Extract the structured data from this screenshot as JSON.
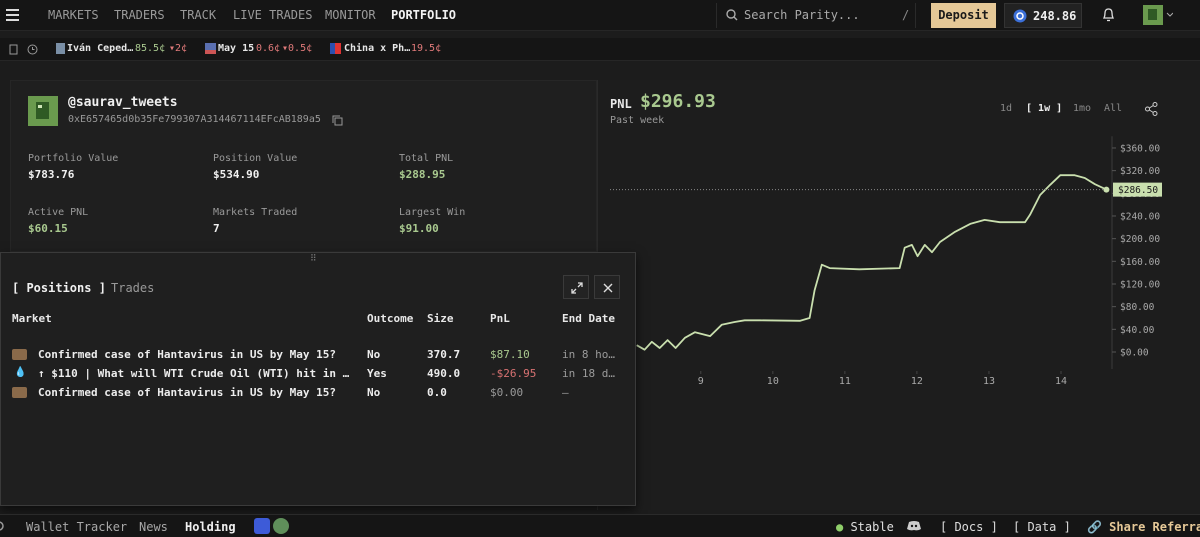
{
  "nav": {
    "items": [
      "MARKETS",
      "TRADERS",
      "TRACK",
      "LIVE TRADES",
      "MONITOR",
      "PORTFOLIO"
    ],
    "active_index": 5
  },
  "search": {
    "placeholder": "Search Parity...",
    "shortcut": "/"
  },
  "deposit": "Deposit",
  "balance": "248.86",
  "ticker": [
    {
      "label": "Iván Ceped…",
      "price": "85.5¢",
      "change": "2¢"
    },
    {
      "label": "May 15",
      "price": "0.6¢",
      "change": "0.5¢"
    },
    {
      "label": "China x Ph…",
      "price": "19.5¢"
    }
  ],
  "profile": {
    "username": "@saurav_tweets",
    "address": "0xE657465d0b35Fe799307A314467114EFcAB189a5",
    "stats": [
      {
        "label": "Portfolio Value",
        "value": "$783.76",
        "color": "#f0f0f0"
      },
      {
        "label": "Position Value",
        "value": "$534.90",
        "color": "#f0f0f0"
      },
      {
        "label": "Total PNL",
        "value": "$288.95",
        "color": "#a9c98f"
      },
      {
        "label": "Active PNL",
        "value": "$60.15",
        "color": "#a9c98f"
      },
      {
        "label": "Markets Traded",
        "value": "7",
        "color": "#f0f0f0"
      },
      {
        "label": "Largest Win",
        "value": "$91.00",
        "color": "#a9c98f"
      }
    ]
  },
  "chart_data": {
    "type": "line",
    "title": "PNL",
    "headline": "$296.93",
    "subtitle": "Past week",
    "ranges": [
      "1d",
      "1w",
      "1mo",
      "All"
    ],
    "active_range": 1,
    "color": "#c9dfae",
    "x": [
      8.11,
      8.22,
      8.32,
      8.43,
      8.54,
      8.65,
      8.78,
      8.92,
      9.13,
      9.29,
      9.47,
      9.61,
      9.82,
      10.38,
      10.51,
      10.58,
      10.68,
      10.79,
      11.2,
      11.76,
      11.83,
      11.93,
      12.01,
      12.11,
      12.21,
      12.32,
      12.53,
      12.74,
      12.94,
      13.15,
      13.5,
      13.57,
      13.71,
      13.85,
      13.99,
      14.19,
      14.33,
      14.47,
      14.63
    ],
    "values": [
      12,
      4,
      18,
      7,
      21,
      7,
      25,
      35,
      28,
      48,
      53,
      56,
      56,
      55,
      60,
      109,
      154,
      148,
      146,
      148,
      184,
      189,
      169,
      189,
      176,
      194,
      212,
      226,
      233,
      229,
      229,
      242,
      277,
      295,
      312,
      312,
      307,
      296,
      286.5
    ],
    "xlim": [
      7.74,
      14.68
    ],
    "ylim": [
      -30,
      370
    ],
    "xticks": [
      9,
      10,
      11,
      12,
      13,
      14
    ],
    "yticks": [
      {
        "value": 0,
        "label": "$0.00"
      },
      {
        "value": 40,
        "label": "$40.00"
      },
      {
        "value": 80,
        "label": "$80.00"
      },
      {
        "value": 120,
        "label": "$120.00"
      },
      {
        "value": 160,
        "label": "$160.00"
      },
      {
        "value": 200,
        "label": "$200.00"
      },
      {
        "value": 240,
        "label": "$240.00"
      },
      {
        "value": 280,
        "label": "$280.00"
      },
      {
        "value": 320,
        "label": "$320.00"
      },
      {
        "value": 360,
        "label": "$360.00"
      }
    ],
    "current": {
      "value": 286.5,
      "label": "$286.50"
    }
  },
  "positions": {
    "tabs": [
      "Positions",
      "Trades"
    ],
    "active_tab": 0,
    "columns": [
      "Market",
      "Outcome",
      "Size",
      "PnL",
      "End Date"
    ],
    "rows": [
      {
        "market": "Confirmed case of Hantavirus in US by May 15?",
        "outcome": "No",
        "size": "370.7",
        "pnl": "$87.10",
        "end": "in 8 ho…",
        "pnl_color": "#a9c98f"
      },
      {
        "market": "↑ $110 | What will WTI Crude Oil (WTI) hit in …",
        "outcome": "Yes",
        "size": "490.0",
        "pnl": "-$26.95",
        "end": "in 18 d…",
        "pnl_color": "#d87272"
      },
      {
        "market": "Confirmed case of Hantavirus in US by May 15?",
        "outcome": "No",
        "size": "0.0",
        "pnl": "$0.00",
        "end": "—",
        "pnl_color": "#9a9a9a"
      }
    ]
  },
  "footer": {
    "tabs": [
      "Wallet Tracker",
      "News",
      "Holding"
    ],
    "active_tab": 2,
    "status": "Stable",
    "links": [
      "Docs",
      "Data"
    ],
    "share": "Share Referral"
  }
}
